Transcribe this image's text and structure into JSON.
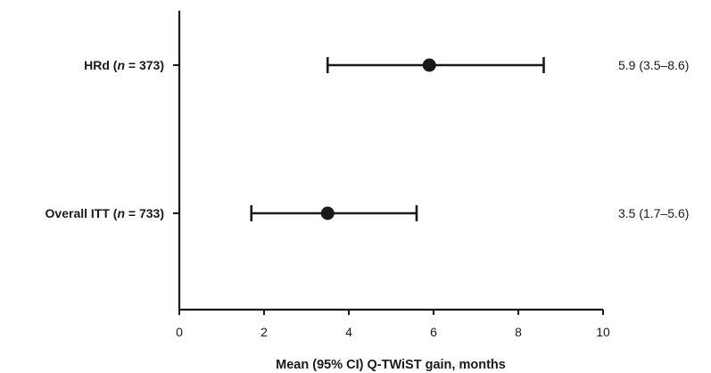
{
  "chart_data": {
    "type": "forest",
    "xlabel": "Mean (95% CI) Q-TWiST gain, months",
    "xlim": [
      0,
      10
    ],
    "xticks": [
      0,
      2,
      4,
      6,
      8,
      10
    ],
    "grid": false,
    "rows": [
      {
        "label_pre": "HRd (",
        "label_n": "n",
        "label_post": " = 373)",
        "mean": 5.9,
        "lower": 3.5,
        "upper": 8.6,
        "annotation": "5.9 (3.5–8.6)"
      },
      {
        "label_pre": "Overall ITT (",
        "label_n": "n",
        "label_post": " = 733)",
        "mean": 3.5,
        "lower": 1.7,
        "upper": 5.6,
        "annotation": "3.5 (1.7–5.6)"
      }
    ],
    "colors": {
      "line": "#1a1a1a",
      "marker": "#1a1a1a"
    }
  }
}
